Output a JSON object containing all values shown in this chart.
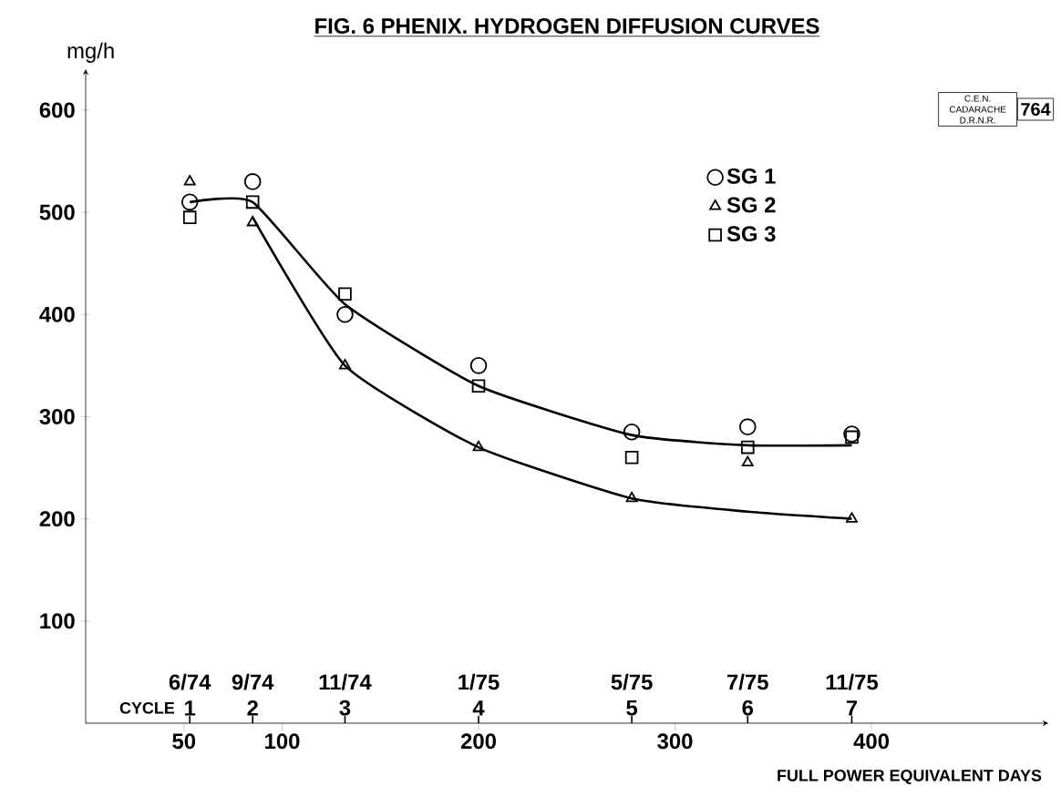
{
  "chart_data": {
    "type": "scatter",
    "title": "FIG. 6 PHENIX. HYDROGEN DIFFUSION CURVES",
    "ylabel": "mg/h",
    "xlabel": "FULL POWER EQUIVALENT DAYS",
    "xlim": [
      0,
      490
    ],
    "ylim": [
      0,
      640
    ],
    "xticks": [
      50,
      100,
      200,
      300,
      400
    ],
    "yticks": [
      100,
      200,
      300,
      400,
      500,
      600
    ],
    "legend": "top right",
    "annotations": [
      "C.E.N. CADARACHE D.R.N.R.",
      "764",
      "6/74",
      "9/74",
      "11/74",
      "1/75",
      "5/75",
      "7/75",
      "11/75",
      "CYCLE",
      "1",
      "2",
      "3",
      "4",
      "5",
      "6",
      "7"
    ],
    "series": [
      {
        "type": "line",
        "color": "#000000",
        "marker": "none",
        "x": [
          53,
          85,
          132,
          200,
          278,
          337,
          390
        ],
        "values": [
          510,
          510,
          410,
          330,
          282,
          272,
          272
        ]
      },
      {
        "type": "line",
        "color": "#000000",
        "marker": "none",
        "x": [
          85,
          132,
          200,
          278,
          337,
          390
        ],
        "values": [
          495,
          350,
          270,
          220,
          207,
          200
        ]
      },
      {
        "name": "SG 1",
        "color": "#000000",
        "marker": "circle",
        "x": [
          53,
          85,
          132,
          200,
          278,
          337,
          390
        ],
        "values": [
          510,
          530,
          400,
          350,
          285,
          290,
          283
        ]
      },
      {
        "name": "SG 2",
        "color": "#000000",
        "marker": "triangle",
        "x": [
          53,
          85,
          132,
          200,
          278,
          337,
          390
        ],
        "values": [
          530,
          490,
          350,
          270,
          220,
          255,
          200
        ]
      },
      {
        "name": "SG 3",
        "color": "#000000",
        "marker": "square",
        "x": [
          53,
          85,
          132,
          200,
          278,
          337,
          390
        ],
        "values": [
          495,
          510,
          420,
          330,
          260,
          270,
          280
        ]
      }
    ]
  }
}
